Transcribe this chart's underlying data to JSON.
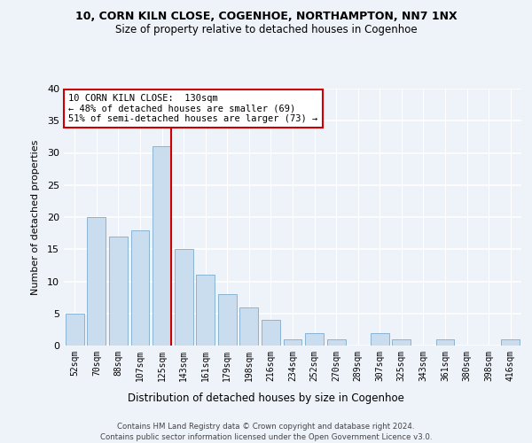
{
  "title1": "10, CORN KILN CLOSE, COGENHOE, NORTHAMPTON, NN7 1NX",
  "title2": "Size of property relative to detached houses in Cogenhoe",
  "xlabel": "Distribution of detached houses by size in Cogenhoe",
  "ylabel": "Number of detached properties",
  "categories": [
    "52sqm",
    "70sqm",
    "88sqm",
    "107sqm",
    "125sqm",
    "143sqm",
    "161sqm",
    "179sqm",
    "198sqm",
    "216sqm",
    "234sqm",
    "252sqm",
    "270sqm",
    "289sqm",
    "307sqm",
    "325sqm",
    "343sqm",
    "361sqm",
    "380sqm",
    "398sqm",
    "416sqm"
  ],
  "values": [
    5,
    20,
    17,
    18,
    31,
    15,
    11,
    8,
    6,
    4,
    1,
    2,
    1,
    0,
    2,
    1,
    0,
    1,
    0,
    0,
    1
  ],
  "bar_color": "#c9ddef",
  "bar_edge_color": "#8ab4d4",
  "bg_color": "#eef2f9",
  "grid_color": "#ffffff",
  "annotation_text": "10 CORN KILN CLOSE:  130sqm\n← 48% of detached houses are smaller (69)\n51% of semi-detached houses are larger (73) →",
  "vline_color": "#cc0000",
  "annotation_box_color": "#ffffff",
  "annotation_box_edge": "#cc0000",
  "footer1": "Contains HM Land Registry data © Crown copyright and database right 2024.",
  "footer2": "Contains public sector information licensed under the Open Government Licence v3.0.",
  "ylim": [
    0,
    40
  ],
  "yticks": [
    0,
    5,
    10,
    15,
    20,
    25,
    30,
    35,
    40
  ],
  "vline_pos": 4.42
}
